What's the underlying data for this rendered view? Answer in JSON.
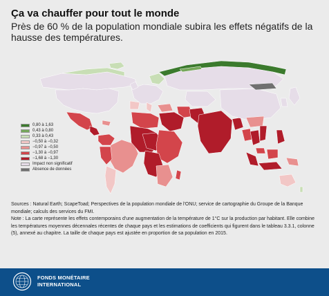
{
  "title": "Ça va chauffer pour tout le monde",
  "subtitle": "Près de 60 % de la population mondiale subira les effets négatifs de la hausse des températures.",
  "legend": {
    "items": [
      {
        "label": "0,80 à 1,63",
        "color": "#3b7a2d"
      },
      {
        "label": "0,43 à 0,80",
        "color": "#76a85a"
      },
      {
        "label": "0,33 à 0,43",
        "color": "#c8deb5"
      },
      {
        "label": "−0,50 à −0,32",
        "color": "#f2c7c6"
      },
      {
        "label": "−0,97 à −0,50",
        "color": "#e8908f"
      },
      {
        "label": "−1,30 à −0,97",
        "color": "#d3454b"
      },
      {
        "label": "−1,68 à −1,30",
        "color": "#b01c2a"
      },
      {
        "label": "Impact non significatif",
        "color": "#e6dde8"
      },
      {
        "label": "Absence de données",
        "color": "#707070"
      }
    ]
  },
  "notes": {
    "sources": "Sources : Natural Earth; ScapeToad; Perspectives de la population mondiale de l'ONU; service de cartographie du Groupe de la Banque mondiale; calculs des services du FMI.",
    "note": "Note : La carte représente les effets contemporains d'une augmentation de la température de 1°C sur la production par habitant. Elle combine les températures moyennes décennales récentes de chaque pays et les estimations de coefficients qui figurent dans le tableau 3.3.1, colonne (5), annexé au chapitre. La taille de chaque pays est ajustée en proportion de sa population en 2015."
  },
  "footer": {
    "line1": "FONDS MONÉTAIRE",
    "line2": "INTERNATIONAL"
  }
}
